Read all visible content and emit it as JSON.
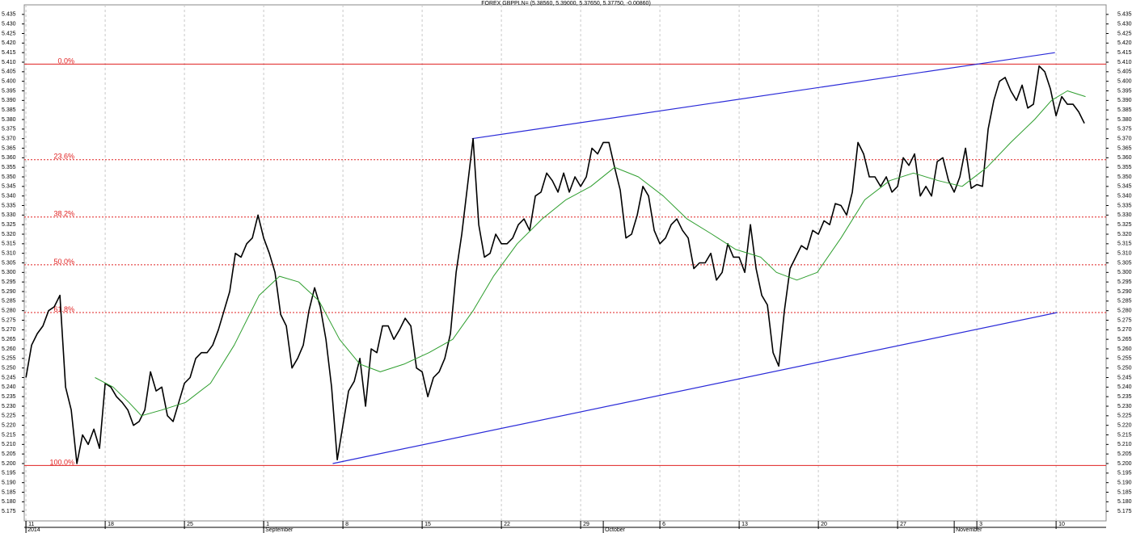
{
  "chart_data": {
    "type": "line",
    "title": "FOREX GBPPLN= (5.38560, 5.39000, 5.37650, 5.37750, -0.00860)",
    "xlim": [
      -0.15,
      95.42
    ],
    "ylim": [
      5.17,
      5.44
    ],
    "grid_x": true,
    "xticks": [
      {
        "value": 0,
        "label": "11"
      },
      {
        "value": 7,
        "label": "18"
      },
      {
        "value": 14,
        "label": "25"
      },
      {
        "value": 21,
        "label": "1"
      },
      {
        "value": 28,
        "label": "8"
      },
      {
        "value": 35,
        "label": "15"
      },
      {
        "value": 42,
        "label": "22"
      },
      {
        "value": 49,
        "label": "29"
      },
      {
        "value": 56,
        "label": "6"
      },
      {
        "value": 63,
        "label": "13"
      },
      {
        "value": 70,
        "label": "20"
      },
      {
        "value": 77,
        "label": "27"
      },
      {
        "value": 84,
        "label": "3"
      },
      {
        "value": 91,
        "label": "10"
      }
    ],
    "month_ticks": [
      {
        "value": 0,
        "label": "2014"
      },
      {
        "value": 21,
        "label": "September"
      },
      {
        "value": 51,
        "label": "October"
      },
      {
        "value": 82,
        "label": "November"
      }
    ],
    "yticks": [
      5.175,
      {
        "value": 5.18,
        "label": "5.180"
      },
      5.185,
      {
        "value": 5.19,
        "label": "5.190"
      },
      5.195,
      {
        "value": 5.2,
        "label": "5.200"
      },
      5.205,
      {
        "value": 5.21,
        "label": "5.210"
      },
      5.215,
      {
        "value": 5.22,
        "label": "5.220"
      },
      5.225,
      {
        "value": 5.23,
        "label": "5.230"
      },
      5.235,
      {
        "value": 5.24,
        "label": "5.240"
      },
      5.245,
      {
        "value": 5.25,
        "label": "5.250"
      },
      5.255,
      {
        "value": 5.26,
        "label": "5.260"
      },
      5.265,
      {
        "value": 5.27,
        "label": "5.270"
      },
      5.275,
      {
        "value": 5.28,
        "label": "5.280"
      },
      5.285,
      {
        "value": 5.29,
        "label": "5.290"
      },
      5.295,
      {
        "value": 5.3,
        "label": "5.300"
      },
      5.305,
      {
        "value": 5.31,
        "label": "5.310"
      },
      5.315,
      {
        "value": 5.32,
        "label": "5.320"
      },
      5.325,
      {
        "value": 5.33,
        "label": "5.330"
      },
      5.335,
      {
        "value": 5.34,
        "label": "5.340"
      },
      5.345,
      {
        "value": 5.35,
        "label": "5.350"
      },
      5.355,
      {
        "value": 5.36,
        "label": "5.360"
      },
      5.365,
      {
        "value": 5.37,
        "label": "5.370"
      },
      5.375,
      {
        "value": 5.38,
        "label": "5.380"
      },
      5.385,
      {
        "value": 5.39,
        "label": "5.390"
      },
      5.395,
      {
        "value": 5.4,
        "label": "5.400"
      },
      5.405,
      {
        "value": 5.41,
        "label": "5.410"
      },
      5.415,
      {
        "value": 5.42,
        "label": "5.420"
      },
      5.425,
      {
        "value": 5.43,
        "label": "5.430"
      },
      5.435
    ],
    "series": [
      {
        "color": "#000000",
        "x": [
          0,
          0.5,
          1,
          1.5,
          2,
          2.5,
          3,
          3.5,
          4,
          4.5,
          5,
          5.5,
          6,
          6.5,
          7,
          7.5,
          8,
          8.5,
          9,
          9.5,
          10,
          10.5,
          11,
          11.5,
          12,
          12.5,
          13,
          13.5,
          14,
          14.5,
          15,
          15.5,
          16,
          16.5,
          17,
          17.5,
          18,
          18.5,
          19,
          19.5,
          20,
          20.5,
          21,
          21.5,
          22,
          22.5,
          23,
          23.5,
          24,
          24.5,
          25,
          25.5,
          26,
          26.5,
          27,
          27.5,
          28,
          28.5,
          29,
          29.5,
          30,
          30.5,
          31,
          31.5,
          32,
          32.5,
          33,
          33.5,
          34,
          34.5,
          35,
          35.5,
          36,
          36.5,
          37,
          37.5,
          38,
          38.5,
          39,
          39.5,
          40,
          40.5,
          41,
          41.5,
          42,
          42.5,
          43,
          43.5,
          44,
          44.5,
          45,
          45.5,
          46,
          46.5,
          47,
          47.5,
          48,
          48.5,
          49,
          49.5,
          50,
          50.5,
          51,
          51.5,
          52,
          52.5,
          53,
          53.5,
          54,
          54.5,
          55,
          55.5,
          56,
          56.5,
          57,
          57.5,
          58,
          58.5,
          59,
          59.5,
          60,
          60.5,
          61,
          61.5,
          62,
          62.5,
          63,
          63.5,
          64,
          64.5,
          65,
          65.5,
          66,
          66.5,
          67,
          67.5,
          68,
          68.5,
          69,
          69.5,
          70,
          70.5,
          71,
          71.5,
          72,
          72.5,
          73,
          73.5,
          74,
          74.5,
          75,
          75.5,
          76,
          76.5,
          77,
          77.5,
          78,
          78.5,
          79,
          79.5,
          80,
          80.5,
          81,
          81.5,
          82,
          82.5,
          83,
          83.5,
          84,
          84.5,
          85,
          85.5,
          86,
          86.5,
          87,
          87.5,
          88,
          88.5,
          89,
          89.5,
          90,
          90.5,
          91,
          91.5,
          92,
          92.5,
          93,
          93.5
        ],
        "values": [
          5.245,
          5.262,
          5.268,
          5.272,
          5.28,
          5.282,
          5.288,
          5.24,
          5.228,
          5.2,
          5.215,
          5.21,
          5.218,
          5.208,
          5.242,
          5.24,
          5.235,
          5.232,
          5.228,
          5.22,
          5.222,
          5.228,
          5.248,
          5.238,
          5.24,
          5.225,
          5.222,
          5.232,
          5.242,
          5.245,
          5.255,
          5.258,
          5.258,
          5.262,
          5.27,
          5.28,
          5.29,
          5.31,
          5.308,
          5.315,
          5.318,
          5.33,
          5.318,
          5.31,
          5.3,
          5.278,
          5.272,
          5.25,
          5.255,
          5.262,
          5.28,
          5.292,
          5.282,
          5.265,
          5.24,
          5.202,
          5.22,
          5.238,
          5.243,
          5.255,
          5.23,
          5.26,
          5.258,
          5.272,
          5.272,
          5.265,
          5.27,
          5.276,
          5.272,
          5.25,
          5.248,
          5.235,
          5.245,
          5.248,
          5.255,
          5.268,
          5.3,
          5.32,
          5.345,
          5.37,
          5.325,
          5.308,
          5.31,
          5.32,
          5.315,
          5.315,
          5.318,
          5.325,
          5.328,
          5.322,
          5.34,
          5.342,
          5.352,
          5.348,
          5.342,
          5.352,
          5.342,
          5.35,
          5.345,
          5.35,
          5.365,
          5.362,
          5.368,
          5.368,
          5.355,
          5.343,
          5.318,
          5.32,
          5.33,
          5.345,
          5.34,
          5.322,
          5.315,
          5.318,
          5.325,
          5.328,
          5.322,
          5.318,
          5.302,
          5.305,
          5.305,
          5.31,
          5.296,
          5.3,
          5.315,
          5.308,
          5.308,
          5.3,
          5.325,
          5.302,
          5.288,
          5.283,
          5.258,
          5.251,
          5.28,
          5.302,
          5.308,
          5.314,
          5.312,
          5.322,
          5.32,
          5.327,
          5.325,
          5.336,
          5.335,
          5.33,
          5.342,
          5.368,
          5.362,
          5.35,
          5.35,
          5.345,
          5.35,
          5.342,
          5.345,
          5.36,
          5.356,
          5.362,
          5.34,
          5.345,
          5.34,
          5.358,
          5.36,
          5.348,
          5.342,
          5.35,
          5.365,
          5.344,
          5.346,
          5.345,
          5.375,
          5.39,
          5.4,
          5.402,
          5.395,
          5.39,
          5.398,
          5.386,
          5.388,
          5.408,
          5.405,
          5.396,
          5.382,
          5.392,
          5.388,
          5.388,
          5.384,
          5.378
        ]
      },
      {
        "color": "#2e9e2e",
        "x": [
          6.1,
          7.7,
          9.1,
          10.2,
          12,
          14.1,
          16.3,
          18.4,
          20.6,
          22.4,
          24.1,
          25.9,
          27.7,
          29.5,
          31.3,
          33.4,
          35.6,
          37.7,
          39.5,
          41.3,
          43.4,
          45.6,
          47.7,
          49.9,
          52,
          54.1,
          56.3,
          58.4,
          60.6,
          62.7,
          64.9,
          66.3,
          68.1,
          69.9,
          72,
          74.1,
          76.3,
          78.4,
          80.6,
          82.7,
          84.9,
          87,
          89.1,
          90.6,
          92,
          93.6
        ],
        "values": [
          5.245,
          5.24,
          5.232,
          5.225,
          5.228,
          5.232,
          5.242,
          5.262,
          5.288,
          5.298,
          5.295,
          5.285,
          5.265,
          5.252,
          5.248,
          5.252,
          5.258,
          5.265,
          5.28,
          5.298,
          5.315,
          5.328,
          5.338,
          5.345,
          5.355,
          5.35,
          5.34,
          5.328,
          5.32,
          5.312,
          5.308,
          5.3,
          5.296,
          5.3,
          5.318,
          5.338,
          5.348,
          5.352,
          5.348,
          5.345,
          5.355,
          5.368,
          5.38,
          5.39,
          5.395,
          5.392
        ]
      }
    ],
    "trendlines": [
      {
        "color": "#2a2ad8",
        "x": [
          27.1,
          91.1
        ],
        "values": [
          5.2,
          5.279
        ]
      },
      {
        "color": "#2a2ad8",
        "x": [
          39.4,
          90.9
        ],
        "values": [
          5.37,
          5.415
        ]
      }
    ],
    "level_color": "#e02020",
    "levels": [
      {
        "label": "0.0%",
        "value": 5.409,
        "style": "solid"
      },
      {
        "label": "23.6%",
        "value": 5.359,
        "style": "dashed"
      },
      {
        "label": "38.2%",
        "value": 5.329,
        "style": "dashed"
      },
      {
        "label": "50.0%",
        "value": 5.304,
        "style": "dashed"
      },
      {
        "label": "61.8%",
        "value": 5.279,
        "style": "dashed"
      },
      {
        "label": "100.0%",
        "value": 5.199,
        "style": "solid"
      }
    ]
  }
}
